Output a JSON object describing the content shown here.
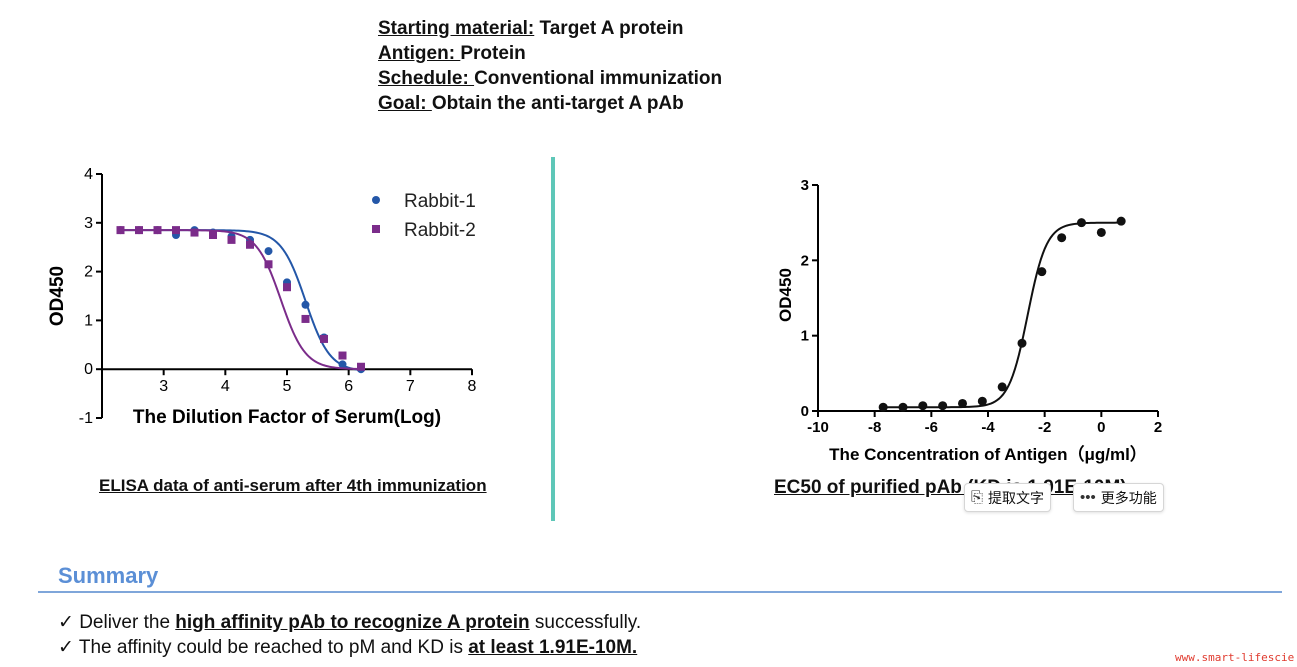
{
  "info": {
    "rows": [
      {
        "label": "Starting material:",
        "value": " Target A protein"
      },
      {
        "label": "Antigen: ",
        "value": "Protein"
      },
      {
        "label": "Schedule: ",
        "value": "Conventional immunization"
      },
      {
        "label": "Goal: ",
        "value": "Obtain the anti-target A pAb"
      }
    ]
  },
  "captions": {
    "left": "ELISA data of anti-serum after 4th immunization",
    "right": "EC50 of purified pAb (KD is 1.91E-10M)"
  },
  "popup": {
    "extract_label": "提取文字",
    "more_label": "更多功能"
  },
  "summary": {
    "title": "Summary",
    "bullets": [
      {
        "check": "✓",
        "pre": " Deliver the ",
        "highlight": "high affinity pAb to recognize A protein",
        "post": " successfully."
      },
      {
        "check": "✓",
        "pre": " The affinity could be reached to pM and KD is ",
        "highlight": "at least 1.91E-10M.",
        "post": ""
      }
    ]
  },
  "watermark": "www.smart-lifescie",
  "chart_data": [
    {
      "type": "scatter",
      "title": "",
      "xlabel": "The Dilution Factor of Serum(Log)",
      "ylabel": "OD450",
      "xlim": [
        2,
        8
      ],
      "ylim": [
        -1,
        4
      ],
      "xticks": [
        3,
        4,
        5,
        6,
        7,
        8
      ],
      "yticks": [
        -1,
        0,
        1,
        2,
        3,
        4
      ],
      "legend": "top-right",
      "grid": false,
      "series": [
        {
          "name": "Rabbit-1",
          "marker": "circle",
          "color": "#2457a8",
          "x": [
            2.3,
            2.6,
            2.9,
            3.2,
            3.5,
            3.8,
            4.1,
            4.4,
            4.7,
            5.0,
            5.3,
            5.6,
            5.9,
            6.2
          ],
          "y": [
            2.85,
            2.85,
            2.85,
            2.75,
            2.85,
            2.8,
            2.72,
            2.65,
            2.42,
            1.78,
            1.32,
            0.65,
            0.1,
            0.0
          ],
          "fit": {
            "top": 2.85,
            "bottom": -0.05,
            "ec50": 5.3,
            "hill": 2.2
          }
        },
        {
          "name": "Rabbit-2",
          "marker": "square",
          "color": "#7b2c8a",
          "x": [
            2.3,
            2.6,
            2.9,
            3.2,
            3.5,
            3.8,
            4.1,
            4.4,
            4.7,
            5.0,
            5.3,
            5.6,
            5.9,
            6.2
          ],
          "y": [
            2.85,
            2.85,
            2.85,
            2.85,
            2.8,
            2.75,
            2.65,
            2.55,
            2.15,
            1.68,
            1.03,
            0.62,
            0.28,
            0.05
          ],
          "fit": {
            "top": 2.85,
            "bottom": 0.0,
            "ec50": 4.9,
            "hill": 2.2
          }
        }
      ]
    },
    {
      "type": "scatter",
      "title": "",
      "xlabel": "The Concentration of  Antigen（μg/ml）",
      "ylabel": "OD450",
      "xlim": [
        -10,
        2
      ],
      "ylim": [
        0,
        3
      ],
      "xticks": [
        -10,
        -8,
        -6,
        -4,
        -2,
        0,
        2
      ],
      "yticks": [
        0,
        1,
        2,
        3
      ],
      "legend": "none",
      "grid": false,
      "series": [
        {
          "name": "",
          "marker": "circle",
          "color": "#111111",
          "x": [
            -7.7,
            -7.0,
            -6.3,
            -5.6,
            -4.9,
            -4.2,
            -3.5,
            -2.8,
            -2.1,
            -1.4,
            -0.7,
            0.0,
            0.7
          ],
          "y": [
            0.05,
            0.05,
            0.07,
            0.07,
            0.1,
            0.13,
            0.32,
            0.9,
            1.85,
            2.3,
            2.5,
            2.37,
            2.52
          ],
          "fit": {
            "top": 2.5,
            "bottom": 0.05,
            "ec50": -2.6,
            "hill": 1.3
          }
        }
      ]
    }
  ]
}
